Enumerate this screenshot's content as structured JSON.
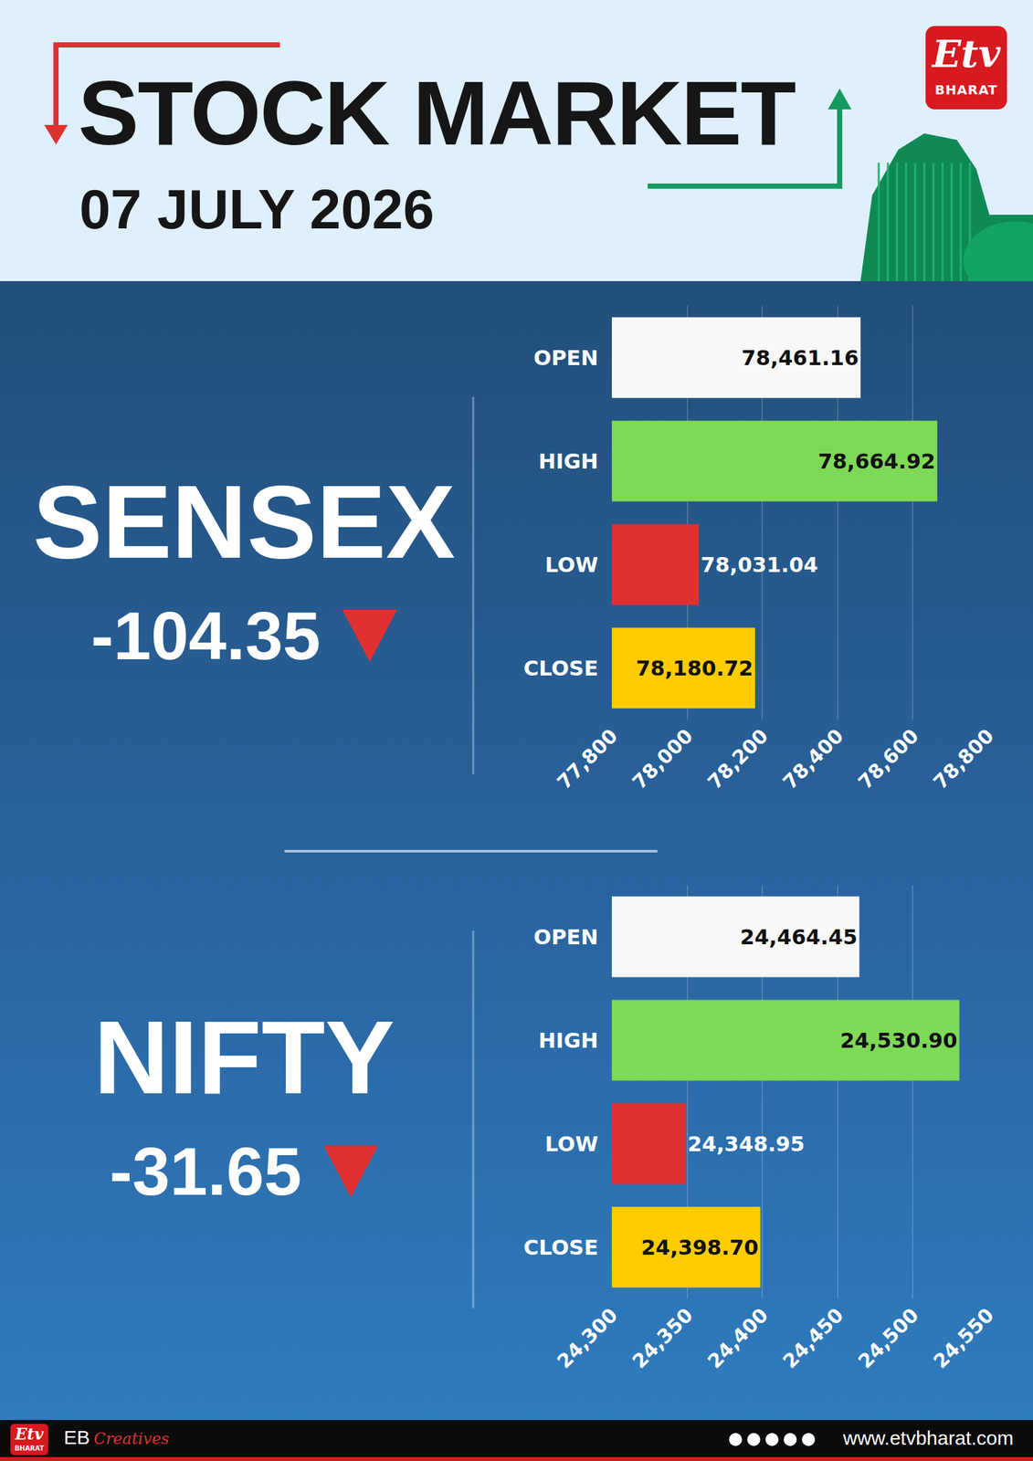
{
  "header": {
    "title": "STOCK MARKET",
    "date": "07 JULY 2026",
    "logo": [
      "Etv",
      "BHARAT"
    ]
  },
  "chart_data": [
    {
      "type": "bar",
      "orientation": "horizontal",
      "title": "SENSEX",
      "change": -104.35,
      "categories": [
        "OPEN",
        "HIGH",
        "LOW",
        "CLOSE"
      ],
      "values": [
        78461.16,
        78664.92,
        78031.04,
        78180.72
      ],
      "value_labels": [
        "78,461.16",
        "78,664.92",
        "78,031.04",
        "78,180.72"
      ],
      "data_labels": true,
      "colors": [
        "#f8f8f8",
        "#7ed957",
        "#e03131",
        "#ffcc00"
      ],
      "xlim": [
        77800,
        78800
      ],
      "xticks": [
        {
          "value": 77800,
          "label": "77,800"
        },
        {
          "value": 78000,
          "label": "78,000"
        },
        {
          "value": 78200,
          "label": "78,200"
        },
        {
          "value": 78400,
          "label": "78,400"
        },
        {
          "value": 78600,
          "label": "78,600"
        },
        {
          "value": 78800,
          "label": "78,800"
        }
      ],
      "grid": true
    },
    {
      "type": "bar",
      "orientation": "horizontal",
      "title": "NIFTY",
      "change": -31.65,
      "categories": [
        "OPEN",
        "HIGH",
        "LOW",
        "CLOSE"
      ],
      "values": [
        24464.45,
        24530.9,
        24348.95,
        24398.7
      ],
      "value_labels": [
        "24,464.45",
        "24,530.90",
        "24,348.95",
        "24,398.70"
      ],
      "data_labels": true,
      "colors": [
        "#f8f8f8",
        "#7ed957",
        "#e03131",
        "#ffcc00"
      ],
      "xlim": [
        24300,
        24550
      ],
      "xticks": [
        {
          "value": 24300,
          "label": "24,300"
        },
        {
          "value": 24350,
          "label": "24,350"
        },
        {
          "value": 24400,
          "label": "24,400"
        },
        {
          "value": 24450,
          "label": "24,450"
        },
        {
          "value": 24500,
          "label": "24,500"
        },
        {
          "value": 24550,
          "label": "24,550"
        }
      ],
      "grid": true
    }
  ],
  "footer": {
    "brand": "EB",
    "brand_tag": "Creatives",
    "website": "www.etvbharat.com"
  }
}
